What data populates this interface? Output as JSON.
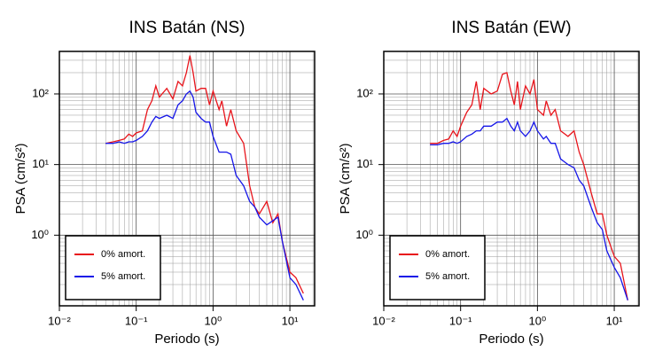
{
  "chart_data": [
    {
      "type": "line",
      "title": "INS Batán (NS)",
      "x_label": "Periodo (s)",
      "y_label": "PSA (cm/s²)",
      "log_x": true,
      "log_y": true,
      "grid": true,
      "legend": "lower left",
      "xlim": [
        0.01,
        21
      ],
      "ylim": [
        0.1,
        400
      ],
      "xticks": [
        {
          "value": 0.01,
          "label": "10⁻²"
        },
        {
          "value": 0.1,
          "label": "10⁻¹"
        },
        {
          "value": 1,
          "label": "10⁰"
        },
        {
          "value": 10,
          "label": "10¹"
        }
      ],
      "yticks": [
        {
          "value": 1,
          "label": "10⁰"
        },
        {
          "value": 10,
          "label": "10¹"
        },
        {
          "value": 100,
          "label": "10²"
        }
      ],
      "x": [
        0.04,
        0.05,
        0.06,
        0.07,
        0.08,
        0.09,
        0.1,
        0.12,
        0.14,
        0.16,
        0.18,
        0.2,
        0.25,
        0.3,
        0.35,
        0.4,
        0.45,
        0.5,
        0.55,
        0.6,
        0.7,
        0.8,
        0.9,
        1.0,
        1.2,
        1.3,
        1.5,
        1.7,
        2.0,
        2.5,
        3.0,
        3.5,
        4,
        5,
        6,
        7,
        8,
        10,
        12,
        15
      ],
      "series": [
        {
          "name": "0% amort.",
          "color": "#e8141b",
          "values": [
            20,
            21,
            22,
            23,
            27,
            25,
            28,
            30,
            60,
            80,
            130,
            90,
            120,
            85,
            150,
            130,
            200,
            350,
            200,
            110,
            120,
            120,
            70,
            110,
            60,
            80,
            35,
            60,
            30,
            20,
            5,
            2.5,
            2,
            3,
            1.5,
            2,
            0.8,
            0.3,
            0.25,
            0.15
          ]
        },
        {
          "name": "5% amort.",
          "color": "#1515e8",
          "values": [
            20,
            20,
            21,
            20,
            21,
            21,
            22,
            25,
            30,
            40,
            48,
            45,
            50,
            45,
            70,
            80,
            100,
            110,
            90,
            55,
            45,
            40,
            40,
            25,
            15,
            15,
            15,
            14,
            7,
            5,
            3,
            2.5,
            1.8,
            1.4,
            1.6,
            1.8,
            0.8,
            0.25,
            0.2,
            0.12
          ]
        }
      ]
    },
    {
      "type": "line",
      "title": "INS Batán (EW)",
      "x_label": "Periodo (s)",
      "y_label": "PSA (cm/s²)",
      "log_x": true,
      "log_y": true,
      "grid": true,
      "legend": "lower left",
      "xlim": [
        0.01,
        21
      ],
      "ylim": [
        0.1,
        400
      ],
      "xticks": [
        {
          "value": 0.01,
          "label": "10⁻²"
        },
        {
          "value": 0.1,
          "label": "10⁻¹"
        },
        {
          "value": 1,
          "label": "10⁰"
        },
        {
          "value": 10,
          "label": "10¹"
        }
      ],
      "yticks": [
        {
          "value": 1,
          "label": "10⁰"
        },
        {
          "value": 10,
          "label": "10¹"
        },
        {
          "value": 100,
          "label": "10²"
        }
      ],
      "x": [
        0.04,
        0.05,
        0.06,
        0.07,
        0.08,
        0.09,
        0.1,
        0.12,
        0.14,
        0.16,
        0.18,
        0.2,
        0.25,
        0.3,
        0.35,
        0.4,
        0.45,
        0.5,
        0.55,
        0.6,
        0.7,
        0.8,
        0.9,
        1.0,
        1.2,
        1.3,
        1.5,
        1.7,
        2.0,
        2.5,
        3.0,
        3.5,
        4,
        5,
        6,
        7,
        8,
        10,
        12,
        15
      ],
      "series": [
        {
          "name": "0% amort.",
          "color": "#e8141b",
          "values": [
            20,
            20,
            22,
            23,
            30,
            25,
            35,
            55,
            70,
            150,
            60,
            120,
            100,
            110,
            190,
            200,
            110,
            70,
            150,
            60,
            130,
            100,
            160,
            60,
            50,
            80,
            50,
            60,
            30,
            25,
            30,
            15,
            10,
            4,
            2,
            2,
            1,
            0.5,
            0.4,
            0.12
          ]
        },
        {
          "name": "5% amort.",
          "color": "#1515e8",
          "values": [
            19,
            19,
            20,
            20,
            21,
            20,
            21,
            25,
            27,
            30,
            30,
            35,
            35,
            40,
            40,
            45,
            35,
            30,
            40,
            30,
            25,
            30,
            40,
            30,
            23,
            25,
            20,
            20,
            12,
            10,
            9,
            6,
            5,
            2.5,
            1.5,
            1.2,
            0.6,
            0.35,
            0.25,
            0.12
          ]
        }
      ]
    }
  ]
}
